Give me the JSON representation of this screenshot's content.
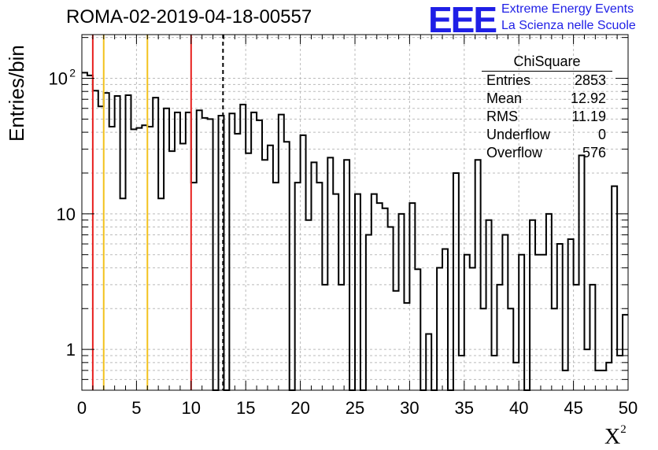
{
  "title": "ROMA-02-2019-04-18-00557",
  "logo": {
    "mark": "EEE",
    "line1": "Extreme Energy Events",
    "line2": "La Scienza nelle Scuole",
    "color": "#1f1fe6"
  },
  "stats": {
    "title": "ChiSquare",
    "rows": [
      {
        "label": "Entries",
        "value": "2853"
      },
      {
        "label": "Mean",
        "value": "12.92"
      },
      {
        "label": "RMS",
        "value": "11.19"
      },
      {
        "label": "Underflow",
        "value": "0"
      },
      {
        "label": "Overflow",
        "value": "576"
      }
    ]
  },
  "chart_data": {
    "type": "bar",
    "histogram": true,
    "xlabel": "Χ",
    "xlabel_sup": "2",
    "ylabel": "Entries/bin",
    "xlim": [
      0,
      50
    ],
    "ylim": [
      0.5,
      210
    ],
    "yscale": "log",
    "bin_width": 0.5,
    "x_ticks": [
      "0",
      "5",
      "10",
      "15",
      "20",
      "25",
      "30",
      "35",
      "40",
      "45",
      "50"
    ],
    "y_ticks": [
      {
        "value": 1,
        "label": "1"
      },
      {
        "value": 10,
        "label": "10"
      },
      {
        "value": 100,
        "label": "10",
        "sup": "2"
      }
    ],
    "grid": true,
    "values": [
      110,
      105,
      81,
      62,
      78,
      44,
      74,
      13,
      75,
      42,
      43,
      45,
      44,
      72,
      13,
      60,
      29,
      56,
      33,
      56,
      17,
      58,
      51,
      50,
      0,
      53,
      0,
      55,
      39,
      64,
      28,
      56,
      49,
      25,
      32,
      17,
      54,
      34,
      0,
      17,
      38,
      9,
      24,
      17,
      3,
      26,
      14,
      3,
      25,
      0,
      14,
      0,
      7,
      14,
      12,
      11,
      8,
      2.7,
      10,
      2.2,
      12,
      3.9,
      0,
      1.3,
      0,
      4,
      5.5,
      0,
      20,
      0.9,
      5,
      4,
      25,
      2,
      9,
      0.9,
      3,
      7,
      2,
      0.8,
      5,
      0,
      9,
      5,
      5,
      10,
      2,
      6,
      0.7,
      6.5,
      3,
      27,
      1,
      3,
      0.7,
      0.7,
      0.8,
      16,
      0.9,
      1.8
    ],
    "vlines": [
      {
        "x": 1,
        "color": "#e8201e",
        "style": "solid"
      },
      {
        "x": 2,
        "color": "#f2c21d",
        "style": "solid"
      },
      {
        "x": 6,
        "color": "#f2c21d",
        "style": "solid"
      },
      {
        "x": 10,
        "color": "#e8201e",
        "style": "solid"
      },
      {
        "x": 12.92,
        "color": "#000000",
        "style": "dashed"
      }
    ],
    "legend": "top-right"
  }
}
